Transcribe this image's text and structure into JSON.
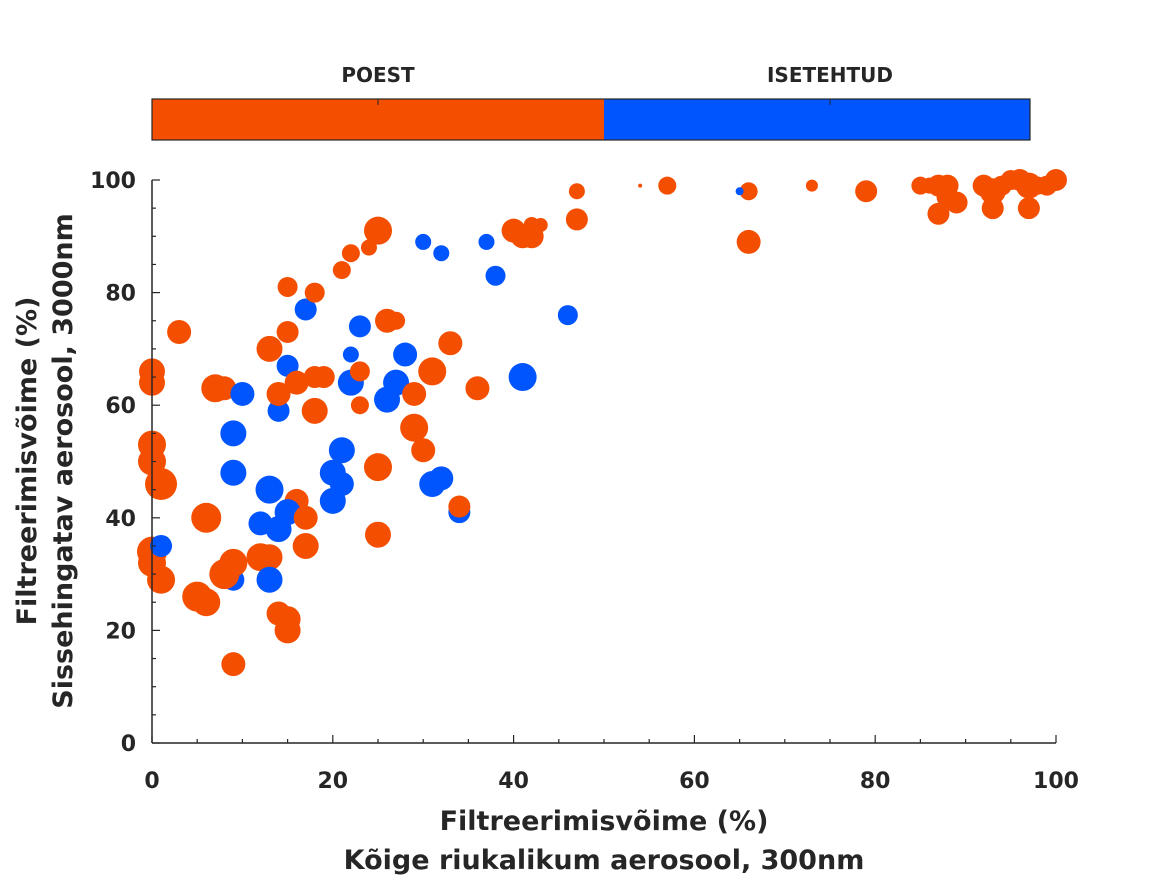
{
  "chart_data": {
    "type": "scatter",
    "xlabel": [
      "Filtreerimisvõime (%)",
      "Kõige riukalikum aerosool, 300nm"
    ],
    "ylabel": [
      "Filtreerimisvõime (%)",
      "Sissehingatav aerosool, 3000nm"
    ],
    "xlim": [
      0,
      100
    ],
    "ylim": [
      0,
      100
    ],
    "x_ticks": [
      "0",
      "20",
      "40",
      "60",
      "80",
      "100"
    ],
    "y_ticks": [
      "0",
      "20",
      "40",
      "60",
      "80",
      "100"
    ],
    "grid": false,
    "legend": {
      "position": "top",
      "style": "color-bar"
    },
    "series": [
      {
        "name": "POEST",
        "color": "#F44F00",
        "points": [
          [
            0,
            66,
            13
          ],
          [
            0,
            64,
            13
          ],
          [
            0,
            53,
            14
          ],
          [
            0,
            50,
            14
          ],
          [
            1,
            46,
            16
          ],
          [
            0,
            34,
            15
          ],
          [
            0,
            32,
            14
          ],
          [
            1,
            29,
            14
          ],
          [
            3,
            73,
            12
          ],
          [
            5,
            26,
            15
          ],
          [
            6,
            25,
            14
          ],
          [
            6,
            40,
            15
          ],
          [
            7,
            63,
            14
          ],
          [
            8,
            63,
            12
          ],
          [
            8,
            30,
            15
          ],
          [
            9,
            32,
            14
          ],
          [
            9,
            14,
            12
          ],
          [
            12,
            33,
            14
          ],
          [
            13,
            33,
            13
          ],
          [
            13,
            70,
            13
          ],
          [
            14,
            62,
            12
          ],
          [
            14,
            23,
            12
          ],
          [
            15,
            81,
            10
          ],
          [
            15,
            73,
            11
          ],
          [
            15,
            22,
            13
          ],
          [
            15,
            20,
            13
          ],
          [
            16,
            64,
            12
          ],
          [
            16,
            43,
            12
          ],
          [
            17,
            40,
            12
          ],
          [
            17,
            35,
            13
          ],
          [
            18,
            80,
            10
          ],
          [
            18,
            65,
            11
          ],
          [
            18,
            59,
            13
          ],
          [
            19,
            65,
            11
          ],
          [
            21,
            84,
            9
          ],
          [
            22,
            87,
            9
          ],
          [
            23,
            66,
            10
          ],
          [
            23,
            60,
            9
          ],
          [
            24,
            88,
            8
          ],
          [
            25,
            91,
            14
          ],
          [
            25,
            49,
            14
          ],
          [
            25,
            37,
            13
          ],
          [
            26,
            75,
            12
          ],
          [
            27,
            75,
            9
          ],
          [
            29,
            62,
            12
          ],
          [
            29,
            56,
            14
          ],
          [
            30,
            52,
            12
          ],
          [
            31,
            66,
            14
          ],
          [
            33,
            71,
            12
          ],
          [
            34,
            42,
            11
          ],
          [
            36,
            63,
            12
          ],
          [
            40,
            91,
            12
          ],
          [
            41,
            90,
            12
          ],
          [
            42,
            90,
            12
          ],
          [
            42,
            92,
            8
          ],
          [
            43,
            92,
            7
          ],
          [
            47,
            98,
            8
          ],
          [
            47,
            93,
            11
          ],
          [
            54,
            99,
            2
          ],
          [
            57,
            99,
            9
          ],
          [
            66,
            98,
            9
          ],
          [
            66,
            89,
            12
          ],
          [
            73,
            99,
            6
          ],
          [
            79,
            98,
            11
          ],
          [
            85,
            99,
            9
          ],
          [
            86,
            99,
            8
          ],
          [
            87,
            99,
            11
          ],
          [
            87,
            94,
            11
          ],
          [
            88,
            99,
            11
          ],
          [
            88,
            97,
            11
          ],
          [
            89,
            96,
            11
          ],
          [
            92,
            99,
            11
          ],
          [
            93,
            98,
            13
          ],
          [
            93,
            95,
            11
          ],
          [
            94,
            99,
            10
          ],
          [
            95,
            100,
            10
          ],
          [
            96,
            100,
            11
          ],
          [
            97,
            99,
            13
          ],
          [
            97,
            95,
            11
          ],
          [
            98,
            99,
            9
          ],
          [
            99,
            99,
            10
          ],
          [
            100,
            100,
            11
          ]
        ]
      },
      {
        "name": "ISETEHTUD",
        "color": "#0055FF",
        "points": [
          [
            1,
            35,
            11
          ],
          [
            9,
            55,
            13
          ],
          [
            9,
            48,
            13
          ],
          [
            9,
            29,
            11
          ],
          [
            10,
            62,
            12
          ],
          [
            12,
            39,
            12
          ],
          [
            13,
            45,
            14
          ],
          [
            13,
            29,
            13
          ],
          [
            14,
            59,
            11
          ],
          [
            14,
            38,
            13
          ],
          [
            15,
            67,
            11
          ],
          [
            15,
            41,
            13
          ],
          [
            17,
            77,
            11
          ],
          [
            20,
            48,
            13
          ],
          [
            20,
            43,
            13
          ],
          [
            21,
            52,
            13
          ],
          [
            21,
            46,
            12
          ],
          [
            22,
            69,
            8
          ],
          [
            22,
            64,
            13
          ],
          [
            23,
            74,
            11
          ],
          [
            26,
            61,
            13
          ],
          [
            27,
            64,
            13
          ],
          [
            28,
            69,
            12
          ],
          [
            30,
            89,
            8
          ],
          [
            31,
            46,
            13
          ],
          [
            32,
            47,
            12
          ],
          [
            32,
            87,
            8
          ],
          [
            34,
            41,
            11
          ],
          [
            37,
            89,
            8
          ],
          [
            38,
            83,
            10
          ],
          [
            41,
            65,
            14
          ],
          [
            46,
            76,
            10
          ],
          [
            65,
            98,
            4
          ]
        ]
      }
    ]
  }
}
